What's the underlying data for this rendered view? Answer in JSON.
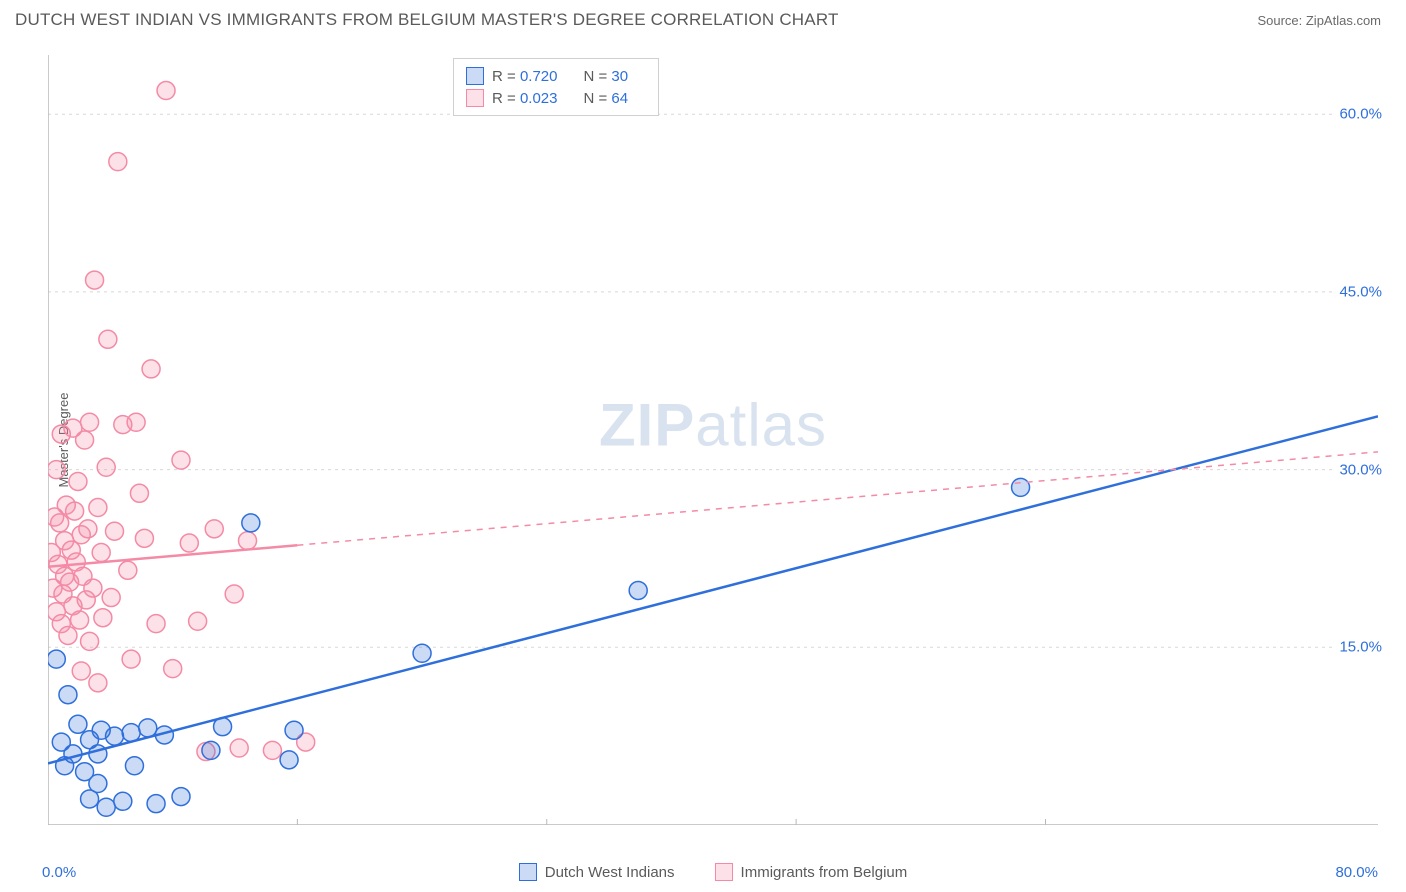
{
  "header": {
    "title": "DUTCH WEST INDIAN VS IMMIGRANTS FROM BELGIUM MASTER'S DEGREE CORRELATION CHART",
    "source": "Source: ZipAtlas.com"
  },
  "watermark": {
    "prefix": "ZIP",
    "suffix": "atlas"
  },
  "chart": {
    "type": "scatter",
    "ylabel": "Master's Degree",
    "xlim": [
      0,
      80
    ],
    "ylim": [
      0,
      65
    ],
    "x_axis_min_label": "0.0%",
    "x_axis_max_label": "80.0%",
    "yticks": [
      15,
      30,
      45,
      60
    ],
    "ytick_labels": [
      "15.0%",
      "30.0%",
      "45.0%",
      "60.0%"
    ],
    "xticks_minor": [
      15,
      30,
      45,
      60
    ],
    "grid_color": "#d8d8d8",
    "axis_color": "#b8b8b8",
    "background_color": "#ffffff",
    "marker_radius": 9,
    "marker_fill_opacity": 0.25,
    "series": [
      {
        "id": "blue",
        "label": "Dutch West Indians",
        "color": "#2e6fdb",
        "r_label": "R =",
        "r_value": "0.720",
        "n_label": "N =",
        "n_value": "30",
        "trend": {
          "x1": 0,
          "y1": 5.2,
          "x2": 80,
          "y2": 34.5,
          "solid_until_x": 80
        },
        "points": [
          [
            0.5,
            14
          ],
          [
            0.8,
            7
          ],
          [
            1.0,
            5
          ],
          [
            1.2,
            11
          ],
          [
            1.5,
            6
          ],
          [
            1.8,
            8.5
          ],
          [
            2.2,
            4.5
          ],
          [
            2.5,
            7.2
          ],
          [
            2.5,
            2.2
          ],
          [
            3.0,
            6
          ],
          [
            3.0,
            3.5
          ],
          [
            3.2,
            8
          ],
          [
            3.5,
            1.5
          ],
          [
            4.0,
            7.5
          ],
          [
            4.5,
            2
          ],
          [
            5.0,
            7.8
          ],
          [
            5.2,
            5
          ],
          [
            6.0,
            8.2
          ],
          [
            6.5,
            1.8
          ],
          [
            7.0,
            7.6
          ],
          [
            8.0,
            2.4
          ],
          [
            9.8,
            6.3
          ],
          [
            10.5,
            8.3
          ],
          [
            12.2,
            25.5
          ],
          [
            14.5,
            5.5
          ],
          [
            14.8,
            8.0
          ],
          [
            22.5,
            14.5
          ],
          [
            35.5,
            19.8
          ],
          [
            58.5,
            28.5
          ]
        ]
      },
      {
        "id": "pink",
        "label": "Immigrants from Belgium",
        "color": "#f48aa5",
        "r_label": "R =",
        "r_value": "0.023",
        "n_label": "N =",
        "n_value": "64",
        "trend": {
          "x1": 0,
          "y1": 21.8,
          "x2": 80,
          "y2": 31.5,
          "solid_until_x": 15
        },
        "points": [
          [
            0.2,
            23
          ],
          [
            0.3,
            20
          ],
          [
            0.4,
            26
          ],
          [
            0.5,
            18
          ],
          [
            0.5,
            30
          ],
          [
            0.6,
            22
          ],
          [
            0.7,
            25.5
          ],
          [
            0.8,
            17
          ],
          [
            0.8,
            33
          ],
          [
            0.9,
            19.5
          ],
          [
            1.0,
            24
          ],
          [
            1.0,
            21
          ],
          [
            1.1,
            27
          ],
          [
            1.2,
            16
          ],
          [
            1.3,
            20.5
          ],
          [
            1.4,
            23.2
          ],
          [
            1.5,
            18.5
          ],
          [
            1.5,
            33.5
          ],
          [
            1.6,
            26.5
          ],
          [
            1.7,
            22.2
          ],
          [
            1.8,
            29
          ],
          [
            1.9,
            17.3
          ],
          [
            2.0,
            24.5
          ],
          [
            2.0,
            13
          ],
          [
            2.1,
            21
          ],
          [
            2.2,
            32.5
          ],
          [
            2.3,
            19
          ],
          [
            2.4,
            25
          ],
          [
            2.5,
            15.5
          ],
          [
            2.5,
            34
          ],
          [
            2.7,
            20
          ],
          [
            2.8,
            46
          ],
          [
            3.0,
            26.8
          ],
          [
            3.0,
            12
          ],
          [
            3.2,
            23
          ],
          [
            3.3,
            17.5
          ],
          [
            3.5,
            30.2
          ],
          [
            3.6,
            41
          ],
          [
            3.8,
            19.2
          ],
          [
            4.0,
            24.8
          ],
          [
            4.2,
            56
          ],
          [
            4.5,
            33.8
          ],
          [
            4.8,
            21.5
          ],
          [
            5.0,
            14
          ],
          [
            5.3,
            34
          ],
          [
            5.5,
            28
          ],
          [
            5.8,
            24.2
          ],
          [
            6.2,
            38.5
          ],
          [
            6.5,
            17
          ],
          [
            7.1,
            62
          ],
          [
            7.5,
            13.2
          ],
          [
            8.0,
            30.8
          ],
          [
            8.5,
            23.8
          ],
          [
            9.0,
            17.2
          ],
          [
            9.5,
            6.2
          ],
          [
            10.0,
            25
          ],
          [
            11.2,
            19.5
          ],
          [
            11.5,
            6.5
          ],
          [
            12.0,
            24
          ],
          [
            13.5,
            6.3
          ],
          [
            15.5,
            7.0
          ]
        ]
      }
    ]
  },
  "legend_bottom": [
    {
      "series": "blue"
    },
    {
      "series": "pink"
    }
  ]
}
